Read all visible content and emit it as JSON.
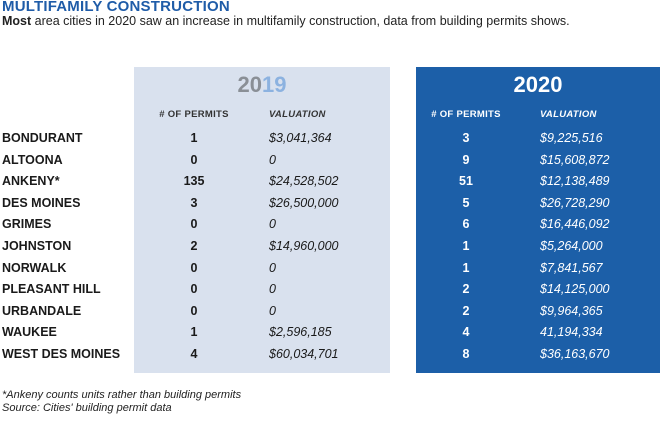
{
  "title": "MULTIFAMILY CONSTRUCTION",
  "subtitle_bold": "Most",
  "subtitle_rest": " area cities in 2020 saw an increase in multifamily construction, data from building permits shows.",
  "year2019": {
    "a": "20",
    "b": "19"
  },
  "year2020": "2020",
  "headers": {
    "permits": "# OF PERMITS",
    "valuation": "VALUATION"
  },
  "rows": [
    {
      "city": "BONDURANT",
      "p19": "1",
      "v19": "$3,041,364",
      "p20": "3",
      "v20": "$9,225,516"
    },
    {
      "city": "ALTOONA",
      "p19": "0",
      "v19": "0",
      "p20": "9",
      "v20": "$15,608,872"
    },
    {
      "city": "ANKENY*",
      "p19": "135",
      "v19": "$24,528,502",
      "p20": "51",
      "v20": "$12,138,489"
    },
    {
      "city": "DES MOINES",
      "p19": "3",
      "v19": "$26,500,000",
      "p20": "5",
      "v20": "$26,728,290"
    },
    {
      "city": "GRIMES",
      "p19": "0",
      "v19": "0",
      "p20": "6",
      "v20": "$16,446,092"
    },
    {
      "city": "JOHNSTON",
      "p19": "2",
      "v19": "$14,960,000",
      "p20": "1",
      "v20": "$5,264,000"
    },
    {
      "city": "NORWALK",
      "p19": "0",
      "v19": "0",
      "p20": "1",
      "v20": "$7,841,567"
    },
    {
      "city": "PLEASANT HILL",
      "p19": "0",
      "v19": "0",
      "p20": "2",
      "v20": "$14,125,000"
    },
    {
      "city": "URBANDALE",
      "p19": "0",
      "v19": "0",
      "p20": "2",
      "v20": "$9,964,365"
    },
    {
      "city": "WAUKEE",
      "p19": "1",
      "v19": "$2,596,185",
      "p20": "4",
      "v20": "41,194,334"
    },
    {
      "city": "WEST DES MOINES",
      "p19": "4",
      "v19": "$60,034,701",
      "p20": "8",
      "v20": "$36,163,670"
    }
  ],
  "footnote": "*Ankeny counts units rather than building permits",
  "source": "Source: Cities' building permit data",
  "colors": {
    "accent": "#1c5fa8",
    "panel2019": "#d9e1ee",
    "title": "#1f5ca8"
  }
}
